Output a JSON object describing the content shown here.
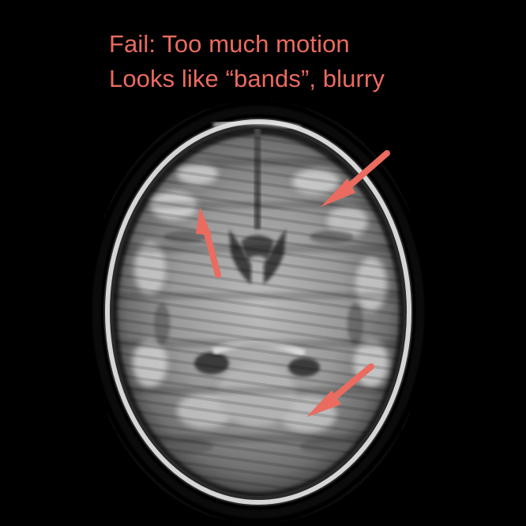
{
  "caption": {
    "line1": "Fail: Too much motion",
    "line2": "Looks like “bands”, blurry"
  },
  "colors": {
    "annotation": "#ea6b60",
    "background": "#000000"
  },
  "image": {
    "subject": "axial brain MRI slice with motion banding",
    "arrow_count": 3
  }
}
